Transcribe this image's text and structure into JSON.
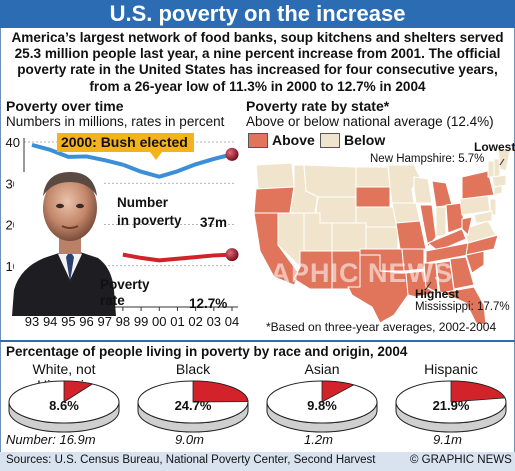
{
  "title": "U.S. poverty on the increase",
  "intro": "America’s largest network of food banks, soup kitchens and shelters served 25.3 million people last year, a nine percent increase from 2001. The official poverty rate in the United States has increased for four consecutive years, from a 26-year low of 11.3% in 2000 to 12.7% in 2004",
  "left_panel": {
    "heading": "Poverty over time",
    "subheading": "Numbers in millions, rates in percent",
    "callout": "2000: Bush elected",
    "number_label_1": "Number",
    "number_label_2": "in poverty",
    "number_value": "37m",
    "rate_label_1": "Poverty",
    "rate_label_2": "rate",
    "rate_value": "12.7%"
  },
  "right_panel": {
    "heading": "Poverty rate by state*",
    "subheading": "Above or below national average (12.4%)",
    "legend_above": "Above",
    "legend_below": "Below",
    "lowest_title": "Lowest",
    "lowest_text": "New Hampshire: 5.7%",
    "highest_title": "Highest",
    "highest_text": "Mississippi: 17.7%",
    "footnote": "*Based on three-year averages, 2002-2004",
    "colors": {
      "above": "#e0755c",
      "below": "#f1e4cd",
      "border": "#ffffff"
    }
  },
  "race_section": {
    "heading": "Percentage of people living in poverty by race and origin, 2004",
    "number_prefix": "Number:",
    "groups": [
      {
        "label": "White, not Hispanic",
        "value": "8.6%",
        "number": "16.9m"
      },
      {
        "label": "Black",
        "value": "24.7%",
        "number": "9.0m"
      },
      {
        "label": "Asian",
        "value": "9.8%",
        "number": "1.2m"
      },
      {
        "label": "Hispanic",
        "value": "21.9%",
        "number": "9.1m"
      }
    ]
  },
  "footer": {
    "sources": "Sources: U.S. Census Bureau, National Poverty Center, Second Harvest",
    "credit": "© GRAPHIC NEWS"
  },
  "watermark": "GRAPHIC NEWS",
  "chart_data": [
    {
      "type": "line",
      "title": "Poverty over time",
      "subtitle": "Numbers in millions, rates in percent",
      "x": [
        "93",
        "94",
        "95",
        "96",
        "97",
        "98",
        "99",
        "00",
        "01",
        "02",
        "03",
        "04"
      ],
      "x_visible_from": 5,
      "ylim": [
        0,
        40
      ],
      "yticks": [
        0,
        10,
        20,
        30,
        40
      ],
      "grid": true,
      "series": [
        {
          "name": "Number in poverty",
          "color": "#3a8fd6",
          "values": [
            39.3,
            38.1,
            36.4,
            36.5,
            35.6,
            34.5,
            32.8,
            31.6,
            32.9,
            34.6,
            35.9,
            37.0
          ]
        },
        {
          "name": "Poverty rate",
          "color": "#d2232a",
          "values": [
            15.1,
            14.5,
            13.8,
            13.7,
            13.3,
            12.7,
            11.9,
            11.3,
            11.7,
            12.1,
            12.5,
            12.7
          ]
        }
      ]
    },
    {
      "type": "pie",
      "title": "Percentage of people living in poverty by race and origin, 2004",
      "categories": [
        "White, not Hispanic",
        "Black",
        "Asian",
        "Hispanic"
      ],
      "values": [
        8.6,
        24.7,
        9.8,
        21.9
      ],
      "colors": {
        "share": "#d2232a",
        "rest": "#ffffff"
      }
    }
  ]
}
